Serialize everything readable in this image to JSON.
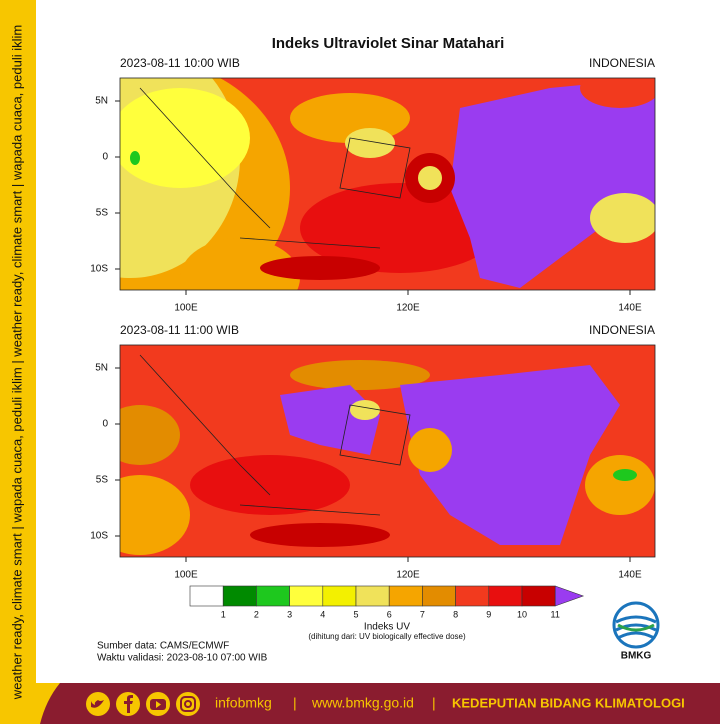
{
  "side_text": "weather ready, climate smart  |  wapada cuaca, peduli iklim  |  weather ready, climate smart  |  wapada cuaca, peduli iklim",
  "title": "Indeks Ultraviolet Sinar Matahari",
  "panels": [
    {
      "time_label": "2023-08-11  10:00 WIB",
      "region": "INDONESIA",
      "lat_labels": [
        "5N",
        "0",
        "5S",
        "10S"
      ],
      "lon_labels": [
        "100E",
        "120E",
        "140E"
      ]
    },
    {
      "time_label": "2023-08-11  11:00 WIB",
      "region": "INDONESIA",
      "lat_labels": [
        "5N",
        "0",
        "5S",
        "10S"
      ],
      "lon_labels": [
        "100E",
        "120E",
        "140E"
      ]
    }
  ],
  "colorbar": {
    "title": "Indeks UV",
    "subtitle": "(dihitung dari: UV biologically effective dose)",
    "ticks": [
      1,
      2,
      3,
      4,
      5,
      6,
      7,
      8,
      9,
      10,
      11
    ],
    "colors": [
      "#ffffff",
      "#008a00",
      "#1ec81e",
      "#ffff3c",
      "#f3f000",
      "#f0e25a",
      "#f5a500",
      "#e38c00",
      "#f23a1e",
      "#e80f0f",
      "#c80000",
      "#9a3cf0"
    ]
  },
  "source": "Sumber data: CAMS/ECMWF",
  "validity": "Waktu validasi: 2023-08-10 07:00 WIB",
  "logo": "BMKG",
  "footer": {
    "handle": "infobmkg",
    "sep1": "|",
    "url": "www.bmkg.go.id",
    "sep2": "|",
    "department": "KEDEPUTIAN BIDANG KLIMATOLOGI"
  }
}
